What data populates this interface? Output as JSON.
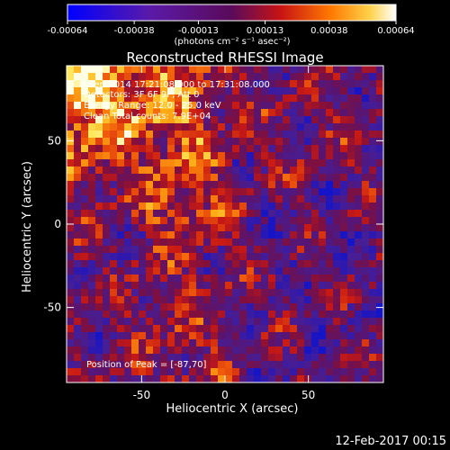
{
  "chart_data": {
    "type": "heatmap",
    "title": "Reconstructed RHESSI Image",
    "xlabel": "Heliocentric X (arcsec)",
    "ylabel": "Heliocentric Y (arcsec)",
    "xlim": [
      -95,
      95
    ],
    "ylim": [
      -95,
      95
    ],
    "x_ticks": [
      -50,
      0,
      50
    ],
    "y_ticks": [
      -50,
      0,
      50
    ],
    "colorbar": {
      "ticks": [
        "-0.00064",
        "-0.00038",
        "-0.00013",
        "0.00013",
        "0.00038",
        "0.00064"
      ],
      "min": -0.00064,
      "max": 0.00064,
      "unit_label": "(photons cm⁻² s⁻¹ asec⁻²)"
    },
    "annotations": [
      "8-Sep-2014 17:21:08.000 to 17:31:08.000",
      "Detectors: 3F 6F 9F, Att 0",
      "Energy Range: 12.0 - 25.0 keV",
      "Clean    Total counts: 7.9E+04"
    ],
    "peak_label": "Position of Peak = [-87,70]",
    "peak_position": [
      -87,
      70
    ],
    "grid": false,
    "colormap": "blue-purple-red-yellow-white"
  },
  "footer": {
    "timestamp": "12-Feb-2017 00:15"
  }
}
